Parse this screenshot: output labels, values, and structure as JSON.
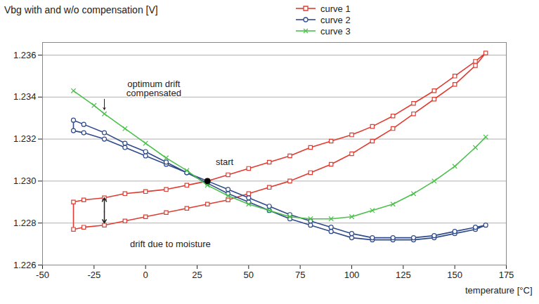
{
  "chart_data": {
    "type": "line",
    "y_label": "Vbg with and w/o compensation  [V]",
    "x_label": "temperature [°C]",
    "xlim": [
      -50,
      175
    ],
    "xticks": [
      -50,
      -25,
      0,
      25,
      50,
      75,
      100,
      125,
      150,
      175
    ],
    "ylim": [
      1.226,
      1.2366
    ],
    "yticks": [
      1.226,
      1.228,
      {
        "value": 1.23,
        "label": "1.230"
      },
      1.232,
      1.234,
      1.236
    ],
    "grid": true,
    "legend": "top",
    "annotations": [
      "optimum drift compensated",
      "start",
      "drift due to moisture"
    ],
    "series": [
      {
        "name": "curve 1",
        "color": "#e03c31",
        "marker": "square",
        "x": [
          30,
          40,
          50,
          60,
          70,
          80,
          90,
          100,
          110,
          120,
          130,
          140,
          150,
          160,
          165,
          160,
          150,
          140,
          130,
          120,
          110,
          100,
          90,
          80,
          70,
          60,
          50,
          40,
          30,
          20,
          10,
          0,
          -10,
          -20,
          -30,
          -35,
          -35,
          -30,
          -20,
          -10,
          0,
          10,
          20,
          30
        ],
        "values": [
          1.23,
          1.2303,
          1.2306,
          1.2309,
          1.2312,
          1.2316,
          1.2319,
          1.2322,
          1.2326,
          1.2331,
          1.2337,
          1.2343,
          1.235,
          1.2357,
          1.2361,
          1.2355,
          1.2346,
          1.2339,
          1.2332,
          1.2325,
          1.2319,
          1.2313,
          1.2308,
          1.2304,
          1.23,
          1.2297,
          1.2294,
          1.2291,
          1.2289,
          1.2287,
          1.2285,
          1.2283,
          1.2281,
          1.2279,
          1.2278,
          1.2277,
          1.229,
          1.2291,
          1.2292,
          1.2294,
          1.2295,
          1.2296,
          1.2298,
          1.23
        ]
      },
      {
        "name": "curve 2",
        "color": "#2f4b8c",
        "marker": "circle",
        "x": [
          30,
          40,
          50,
          60,
          70,
          80,
          90,
          100,
          110,
          120,
          130,
          140,
          150,
          160,
          165,
          160,
          150,
          140,
          130,
          120,
          110,
          100,
          90,
          80,
          70,
          60,
          50,
          40,
          30,
          20,
          10,
          0,
          -10,
          -20,
          -30,
          -35,
          -35,
          -30,
          -20,
          -10,
          0,
          10,
          20,
          30
        ],
        "values": [
          1.2299,
          1.2294,
          1.229,
          1.2286,
          1.2282,
          1.2279,
          1.2276,
          1.2273,
          1.2272,
          1.2272,
          1.2272,
          1.2273,
          1.2275,
          1.2277,
          1.2279,
          1.2278,
          1.2276,
          1.2274,
          1.2273,
          1.2273,
          1.2273,
          1.2275,
          1.2278,
          1.2281,
          1.2284,
          1.2288,
          1.2292,
          1.2296,
          1.23,
          1.2304,
          1.2308,
          1.2312,
          1.2316,
          1.232,
          1.2323,
          1.2324,
          1.2329,
          1.2327,
          1.2323,
          1.2318,
          1.2314,
          1.2309,
          1.2304,
          1.2299
        ]
      },
      {
        "name": "curve 3",
        "color": "#4cbf4c",
        "marker": "x",
        "x": [
          -35,
          -25,
          -20,
          -10,
          0,
          10,
          20,
          30,
          40,
          50,
          60,
          70,
          80,
          90,
          100,
          110,
          120,
          130,
          140,
          150,
          160,
          165
        ],
        "values": [
          1.2343,
          1.2336,
          1.2332,
          1.2325,
          1.2318,
          1.2311,
          1.2305,
          1.2298,
          1.2293,
          1.2289,
          1.2286,
          1.2283,
          1.2282,
          1.2282,
          1.2283,
          1.2286,
          1.2289,
          1.2294,
          1.23,
          1.2307,
          1.2316,
          1.2321
        ]
      }
    ]
  }
}
